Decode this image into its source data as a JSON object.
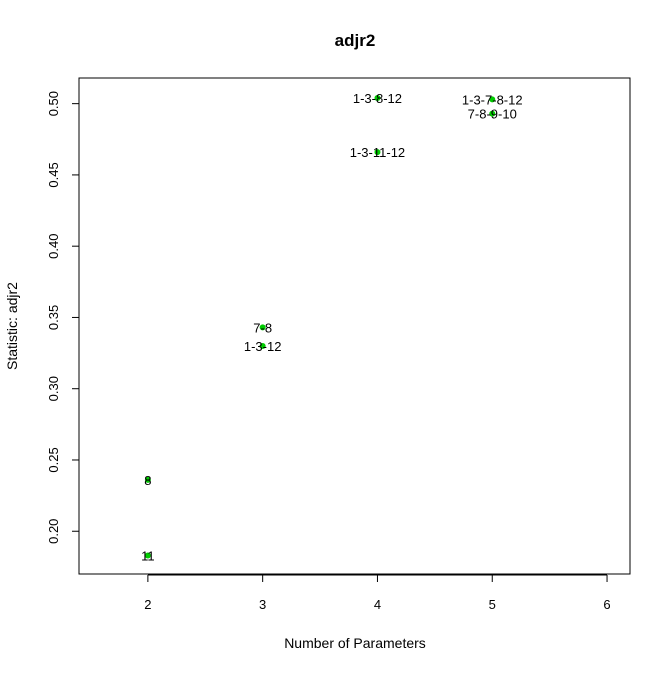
{
  "chart_data": {
    "type": "scatter",
    "title": "adjr2",
    "xlabel": "Number of Parameters",
    "ylabel": "Statistic: adjr2",
    "xlim": [
      1.4,
      6.2
    ],
    "ylim": [
      0.17,
      0.518
    ],
    "xticks": [
      "2",
      "3",
      "4",
      "5",
      "6"
    ],
    "yticks": [
      "0.20",
      "0.25",
      "0.30",
      "0.35",
      "0.40",
      "0.45",
      "0.50"
    ],
    "grid": false,
    "point_color": "#00cc00",
    "points": [
      {
        "x": 2,
        "y": 0.236,
        "label": "8"
      },
      {
        "x": 2,
        "y": 0.183,
        "label": "11"
      },
      {
        "x": 3,
        "y": 0.343,
        "label": "7-8"
      },
      {
        "x": 3,
        "y": 0.33,
        "label": "1-3-12"
      },
      {
        "x": 4,
        "y": 0.504,
        "label": "1-3-8-12"
      },
      {
        "x": 4,
        "y": 0.466,
        "label": "1-3-11-12"
      },
      {
        "x": 5,
        "y": 0.503,
        "label": "1-3-7-8-12"
      },
      {
        "x": 5,
        "y": 0.493,
        "label": "7-8-9-10"
      }
    ]
  }
}
